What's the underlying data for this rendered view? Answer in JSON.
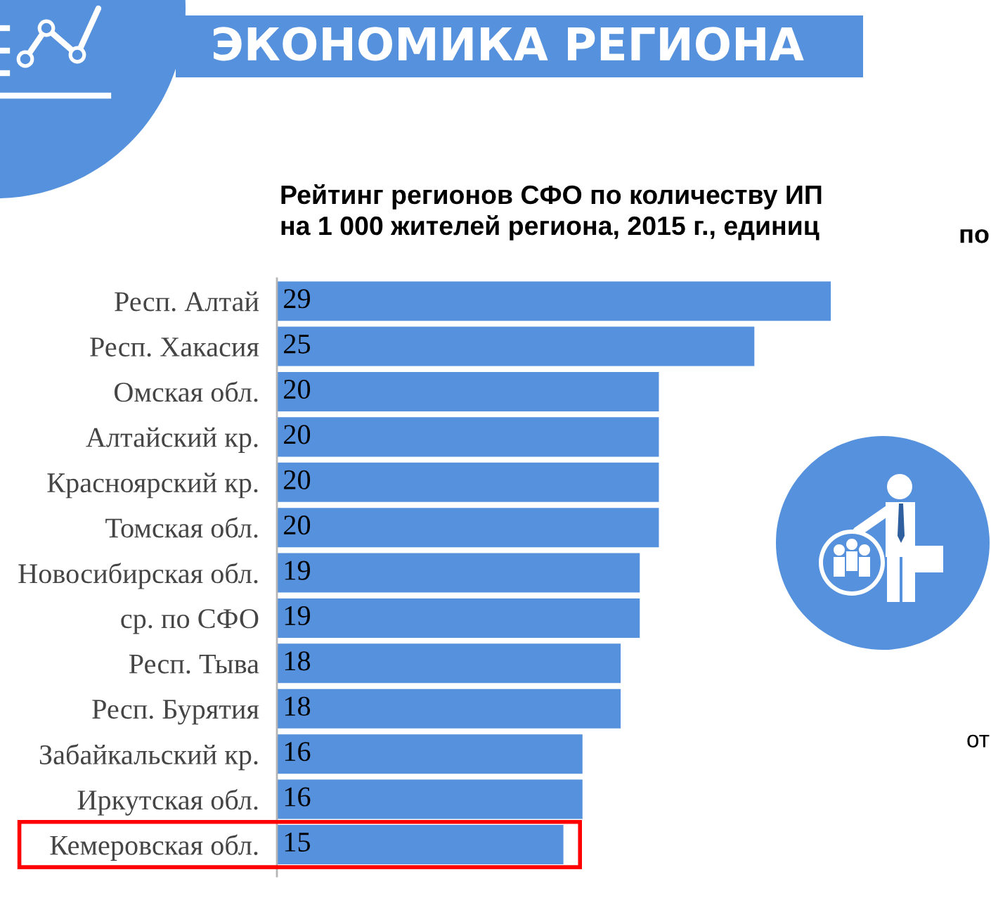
{
  "chart_data": {
    "type": "bar",
    "orientation": "horizontal",
    "title": "Рейтинг регионов СФО по количеству ИП\nна 1 000 жителей региона, 2015 г., единиц",
    "categories": [
      "Респ. Алтай",
      "Респ. Хакасия",
      "Омская обл.",
      "Алтайский кр.",
      "Красноярский кр.",
      "Томская обл.",
      "Новосибирская обл.",
      "ср. по СФО",
      "Респ. Тыва",
      "Респ. Бурятия",
      "Забайкальский кр.",
      "Иркутская обл.",
      "Кемеровская обл."
    ],
    "values": [
      29,
      25,
      20,
      20,
      20,
      20,
      19,
      19,
      18,
      18,
      16,
      16,
      15
    ],
    "color": "#5591dc",
    "data_labels": true,
    "tick_labels": "y",
    "annotations": [
      "ЭКОНОМИКА РЕГИОНА",
      "по",
      "от"
    ]
  }
}
